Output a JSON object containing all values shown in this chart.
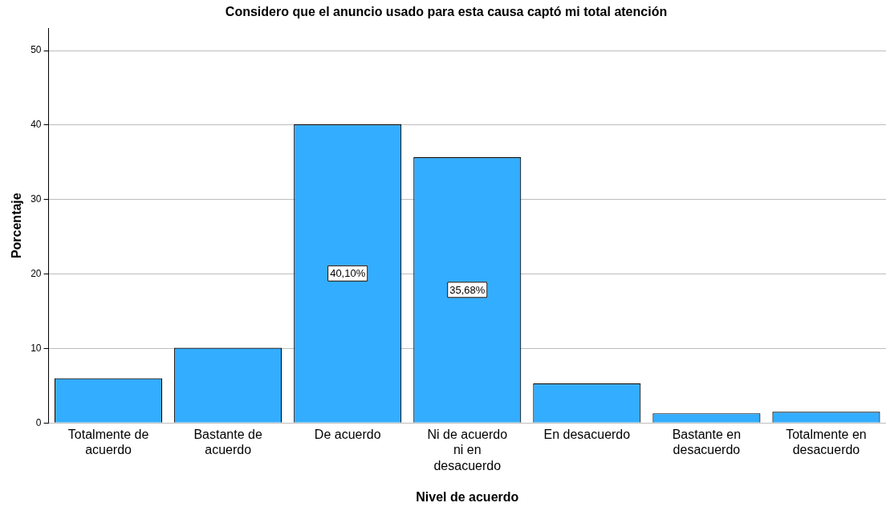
{
  "chart_data": {
    "type": "bar",
    "title": "Considero que el anuncio usado para esta causa captó mi total atención",
    "xlabel": "Nivel de acuerdo",
    "ylabel": "Porcentaje",
    "categories": [
      "Totalmente de acuerdo",
      "Bastante de acuerdo",
      "De acuerdo",
      "Ni de acuerdo ni en desacuerdo",
      "En desacuerdo",
      "Bastante en desacuerdo",
      "Totalmente en desacuerdo"
    ],
    "values": [
      6.0,
      10.1,
      40.1,
      35.68,
      5.3,
      1.3,
      1.5
    ],
    "value_labels": [
      null,
      null,
      "40,10%",
      "35,68%",
      null,
      null,
      null
    ],
    "color": "#33adff",
    "ylim": [
      0,
      53
    ],
    "yticks": [
      0,
      10,
      20,
      30,
      40,
      50
    ],
    "grid": "y",
    "legend": false
  }
}
